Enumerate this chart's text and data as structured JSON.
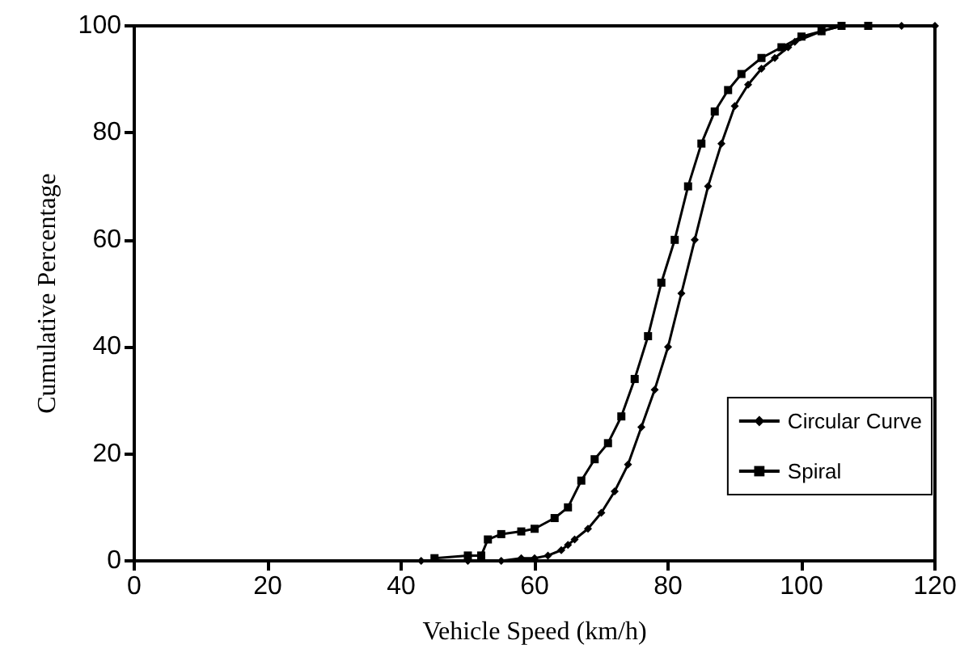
{
  "chart_data": {
    "type": "line",
    "xlabel": "Vehicle Speed (km/h)",
    "ylabel": "Cumulative Percentage",
    "xlim": [
      0,
      120
    ],
    "xticks": [
      0,
      20,
      40,
      60,
      80,
      100,
      120
    ],
    "ylim": [
      0,
      100
    ],
    "yticks": [
      0,
      20,
      40,
      60,
      80,
      100
    ],
    "grid": false,
    "legend": "bottom right",
    "line_style": "solid",
    "series": [
      {
        "name": "Circular Curve",
        "color": "#000000",
        "marker": "diamond",
        "x": [
          43,
          50,
          55,
          58,
          60,
          62,
          64,
          65,
          66,
          68,
          70,
          72,
          74,
          76,
          78,
          80,
          82,
          84,
          86,
          88,
          90,
          92,
          94,
          96,
          98,
          99,
          103,
          106,
          110,
          115,
          120
        ],
        "values": [
          0,
          0,
          0,
          0.5,
          0.5,
          1,
          2,
          3,
          4,
          6,
          9,
          13,
          18,
          25,
          32,
          40,
          50,
          60,
          70,
          78,
          85,
          89,
          92,
          94,
          96,
          97,
          99,
          100,
          100,
          100,
          100
        ]
      },
      {
        "name": "Spiral",
        "color": "#000000",
        "marker": "square",
        "x": [
          45,
          50,
          52,
          53,
          55,
          58,
          60,
          63,
          65,
          67,
          69,
          71,
          73,
          75,
          77,
          79,
          81,
          83,
          85,
          87,
          89,
          91,
          94,
          97,
          100,
          103,
          106,
          110
        ],
        "values": [
          0.5,
          1,
          1,
          4,
          5,
          5.5,
          6,
          8,
          10,
          15,
          19,
          22,
          27,
          34,
          42,
          52,
          60,
          70,
          78,
          84,
          88,
          91,
          94,
          96,
          98,
          99,
          100,
          100
        ]
      }
    ]
  }
}
